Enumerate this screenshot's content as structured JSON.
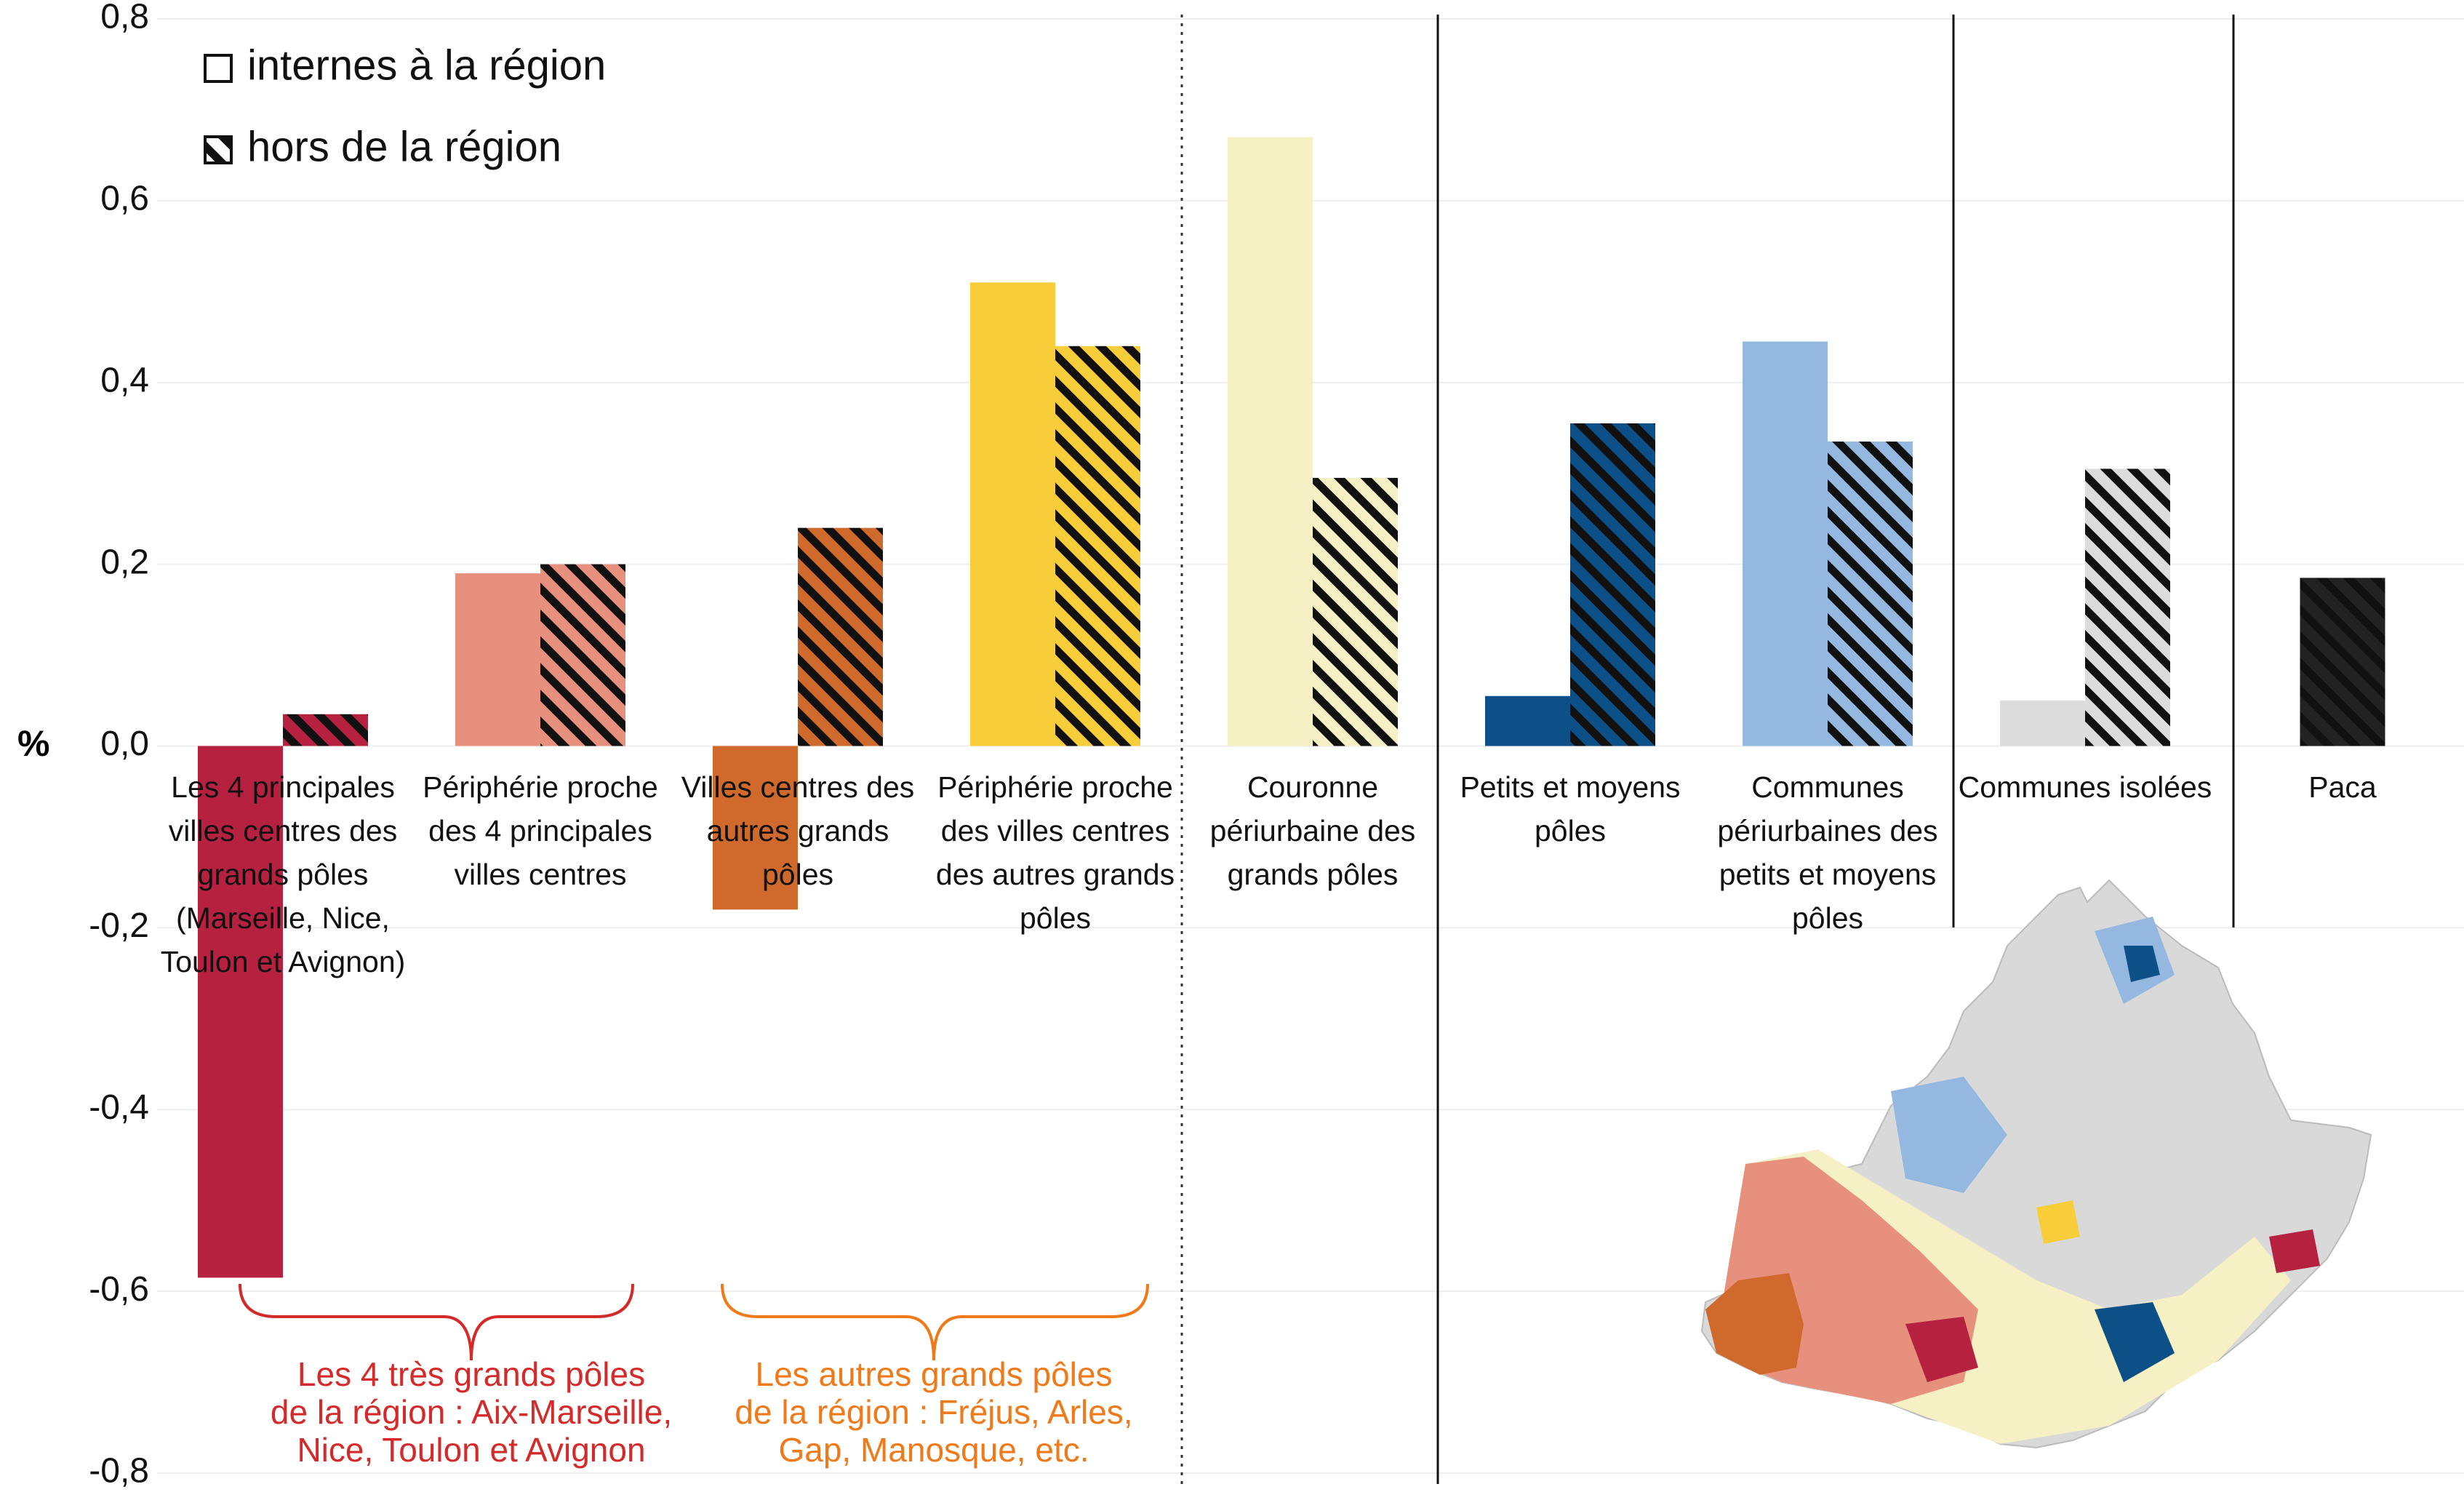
{
  "chart_data": {
    "type": "bar",
    "y_label": "%",
    "categories": [
      "Les 4 principales villes centres des grands pôles (Marseille, Nice, Toulon et Avignon)",
      "Périphérie proche des 4 principales villes centres",
      "Villes centres des autres grands pôles",
      "Périphérie proche des villes centres des autres grands pôles",
      "Couronne périurbaine des grands pôles",
      "Petits et moyens pôles",
      "Communes périurbaines des petits et moyens pôles",
      "Communes isolées",
      "Paca"
    ],
    "colors": [
      "#b5213f",
      "#e8907e",
      "#d06a2c",
      "#f8cd3a",
      "#f6f1c4",
      "#0d4f87",
      "#94b8e0",
      "#dcdcdc",
      "#222222"
    ],
    "series": [
      {
        "name": "internes à la région",
        "values": [
          -0.585,
          0.19,
          -0.18,
          0.51,
          0.67,
          0.055,
          0.445,
          0.05,
          null
        ]
      },
      {
        "name": "hors de la région",
        "hatched": true,
        "values": [
          0.035,
          0.2,
          0.24,
          0.44,
          0.295,
          0.355,
          0.335,
          0.305,
          0.185
        ]
      }
    ],
    "ylim": [
      -0.8,
      0.8
    ],
    "yticks": [
      {
        "value": -0.8,
        "label": "-0,8"
      },
      {
        "value": -0.6,
        "label": "-0,6"
      },
      {
        "value": -0.4,
        "label": "-0,4"
      },
      {
        "value": -0.2,
        "label": "-0,2"
      },
      {
        "value": 0,
        "label": "0,0"
      },
      {
        "value": 0.2,
        "label": "0,2"
      },
      {
        "value": 0.4,
        "label": "0,4"
      },
      {
        "value": 0.6,
        "label": "0,6"
      },
      {
        "value": 0.8,
        "label": "0,8"
      }
    ],
    "grid": true,
    "annotations": [
      {
        "lines": [
          "Les 4 très grands pôles",
          "de la région : Aix-Marseille,",
          "Nice, Toulon et Avignon"
        ],
        "color": "#d42a2a"
      },
      {
        "lines": [
          "Les autres grands pôles",
          "de la région : Fréjus, Arles,",
          "Gap, Manosque, etc."
        ],
        "color": "#f07a1a"
      }
    ]
  }
}
